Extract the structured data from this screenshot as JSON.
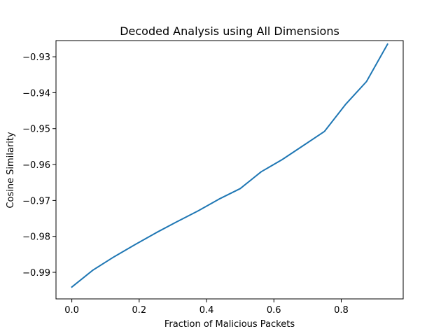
{
  "chart_data": {
    "type": "line",
    "title": "Decoded Analysis using All Dimensions",
    "xlabel": "Fraction of Malicious Packets",
    "ylabel": "Cosine Similarity",
    "xlim": [
      -0.047,
      0.984
    ],
    "ylim": [
      -0.9974,
      -0.9255
    ],
    "xticks": [
      0.0,
      0.2,
      0.4,
      0.6,
      0.8
    ],
    "xtick_labels": [
      "0.0",
      "0.2",
      "0.4",
      "0.6",
      "0.8"
    ],
    "yticks": [
      -0.99,
      -0.98,
      -0.97,
      -0.96,
      -0.95,
      -0.94,
      -0.93
    ],
    "ytick_labels": [
      "−0.99",
      "−0.98",
      "−0.97",
      "−0.96",
      "−0.95",
      "−0.94",
      "−0.93"
    ],
    "grid": false,
    "series": [
      {
        "color": "#1f77b4",
        "x": [
          0.0,
          0.0625,
          0.125,
          0.1875,
          0.25,
          0.3125,
          0.375,
          0.4375,
          0.5,
          0.5625,
          0.625,
          0.6875,
          0.75,
          0.8125,
          0.875,
          0.9375
        ],
        "y": [
          -0.9941,
          -0.9894,
          -0.9857,
          -0.9823,
          -0.979,
          -0.9759,
          -0.9729,
          -0.9696,
          -0.9667,
          -0.962,
          -0.9586,
          -0.9547,
          -0.9508,
          -0.9433,
          -0.9369,
          -0.9265
        ]
      }
    ]
  }
}
